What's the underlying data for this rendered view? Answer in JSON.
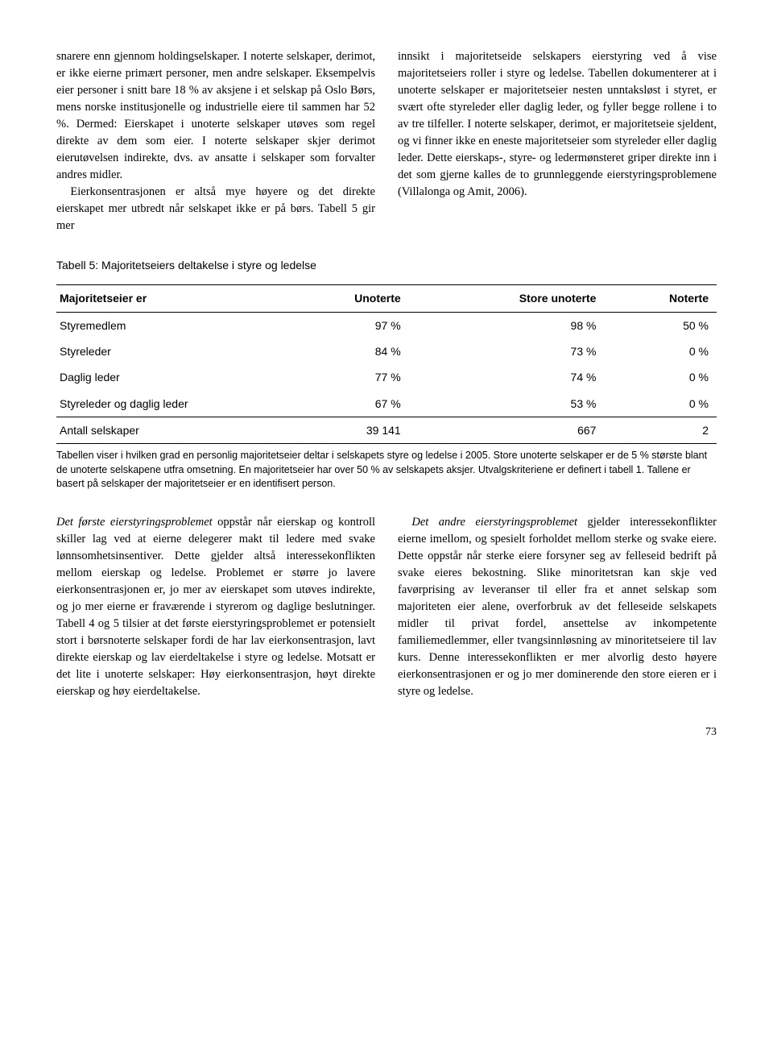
{
  "top": {
    "left_p1": "snarere enn gjennom holdingselskaper. I noterte selskaper, derimot, er ikke eierne primært personer, men andre selskaper. Eksempelvis eier personer i snitt bare 18 % av aksjene i et selskap på Oslo Børs, mens norske institusjonelle og industrielle eiere til sammen har 52 %. Dermed: Eierskapet i unoterte selskaper utøves som regel direkte av dem som eier. I noterte selskaper skjer derimot eierutøvelsen indirekte, dvs. av ansatte i selskaper som forvalter andres midler.",
    "left_p2": "Eierkonsentrasjonen er altså mye høyere og det direkte eierskapet mer utbredt når selskapet ikke er på børs. Tabell 5 gir mer",
    "right_p1": "innsikt i majoritetseide selskapers eierstyring ved å vise majoritetseiers roller i styre og ledelse. Tabellen dokumenterer at i unoterte selskaper er majoritetseier nesten unntaksløst i styret, er svært ofte styreleder eller daglig leder, og fyller begge rollene i to av tre tilfeller. I noterte selskaper, derimot, er majoritetseie sjeldent, og vi finner ikke en eneste majoritetseier som styreleder eller daglig leder. Dette eierskaps-, styre- og ledermønsteret griper direkte inn i det som gjerne kalles de to grunnleggende eierstyringsproblemene (Villalonga og Amit, 2006)."
  },
  "table": {
    "title": "Tabell 5: Majoritetseiers deltakelse i styre og ledelse",
    "header": [
      "Majoritetseier er",
      "Unoterte",
      "Store unoterte",
      "Noterte"
    ],
    "rows": [
      [
        "Styremedlem",
        "97 %",
        "98 %",
        "50 %"
      ],
      [
        "Styreleder",
        "84 %",
        "73 %",
        "0 %"
      ],
      [
        "Daglig leder",
        "77 %",
        "74 %",
        "0 %"
      ],
      [
        "Styreleder og daglig leder",
        "67 %",
        "53 %",
        "0 %"
      ],
      [
        "Antall selskaper",
        "39 141",
        "667",
        "2"
      ]
    ],
    "caption": "Tabellen viser i hvilken grad en personlig majoritetseier deltar i selskapets styre og ledelse i 2005. Store unoterte selskaper er de 5 % største blant de unoterte selskapene utfra omsetning. En majoritetseier har over 50 % av selskapets aksjer. Utvalgskriteriene er definert i tabell 1. Tallene er basert på selskaper der majoritetseier er en identifisert person."
  },
  "bottom": {
    "left_lead": "Det første eierstyringsproblemet",
    "left_rest": " oppstår når eierskap og kontroll skiller lag ved at eierne delegerer makt til ledere med svake lønnsomhetsinsentiver. Dette gjelder altså interessekonflikten mellom eierskap og ledelse. Problemet er større jo lavere eierkonsentrasjonen er, jo mer av eierskapet som utøves indirekte, og jo mer eierne er fraværende i styrerom og daglige beslutninger. Tabell 4 og 5 tilsier at det første eierstyringsproblemet er potensielt stort i børsnoterte selskaper fordi de har lav eierkonsentrasjon, lavt direkte eierskap og lav eierdeltakelse i styre og ledelse. Motsatt er det lite i unoterte selskaper: Høy eierkonsentrasjon, høyt direkte eierskap og høy eierdeltakelse.",
    "right_lead": "Det andre eierstyringsproblemet",
    "right_rest": " gjelder interessekonflikter eierne imellom, og spesielt forholdet mellom sterke og svake eiere. Dette oppstår når sterke eiere forsyner seg av felleseid bedrift på svake eieres bekostning. Slike minoritetsran kan skje ved favørprising av leveranser til eller fra et annet selskap som majoriteten eier alene, overforbruk av det felleseide selskapets midler til privat fordel, ansettelse av inkompetente familiemedlemmer, eller tvangsinnløsning av minoritetseiere til lav kurs. Denne interessekonflikten er mer alvorlig desto høyere eierkonsentrasjonen er og jo mer dominerende den store eieren er i styre og ledelse."
  },
  "page": "73"
}
